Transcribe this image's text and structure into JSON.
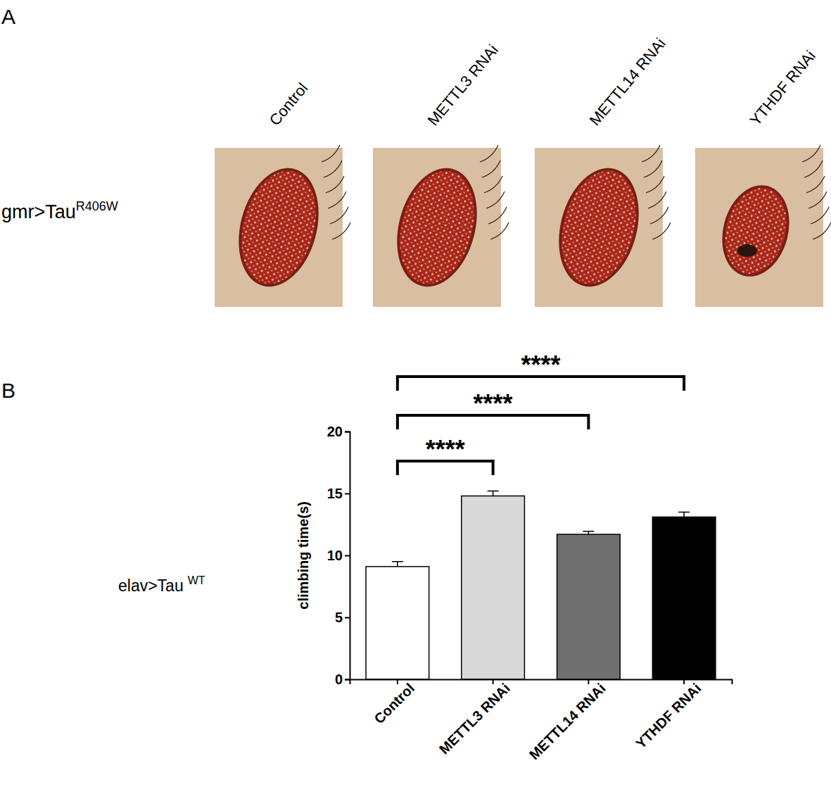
{
  "panel_a": {
    "label": "A",
    "row_label": "gmr>Tau",
    "row_label_superscript": "R406W",
    "columns": [
      "Control",
      "METTL3 RNAi",
      "METTL14 RNAi",
      "YTHDF RNAi"
    ]
  },
  "panel_b": {
    "label": "B",
    "row_label": "elav>Tau",
    "row_label_superscript": "WT"
  },
  "chart_data": {
    "type": "bar",
    "y_label": "climbing time(s)",
    "categories": [
      "Control",
      "METTL3 RNAi",
      "METTL14 RNAi",
      "YTHDF RNAi"
    ],
    "values": [
      9.1,
      14.8,
      11.7,
      13.1
    ],
    "errors": [
      0.4,
      0.4,
      0.25,
      0.4
    ],
    "colors": [
      "#ffffff",
      "#d9d9d9",
      "#707070",
      "#000000"
    ],
    "ylim": [
      0,
      20
    ],
    "yticks": [
      0,
      5,
      10,
      15,
      20
    ],
    "annotations": [
      {
        "text": "****",
        "from": "Control",
        "to": "METTL3 RNAi"
      },
      {
        "text": "****",
        "from": "Control",
        "to": "METTL14 RNAi"
      },
      {
        "text": "****",
        "from": "Control",
        "to": "YTHDF RNAi"
      }
    ]
  }
}
